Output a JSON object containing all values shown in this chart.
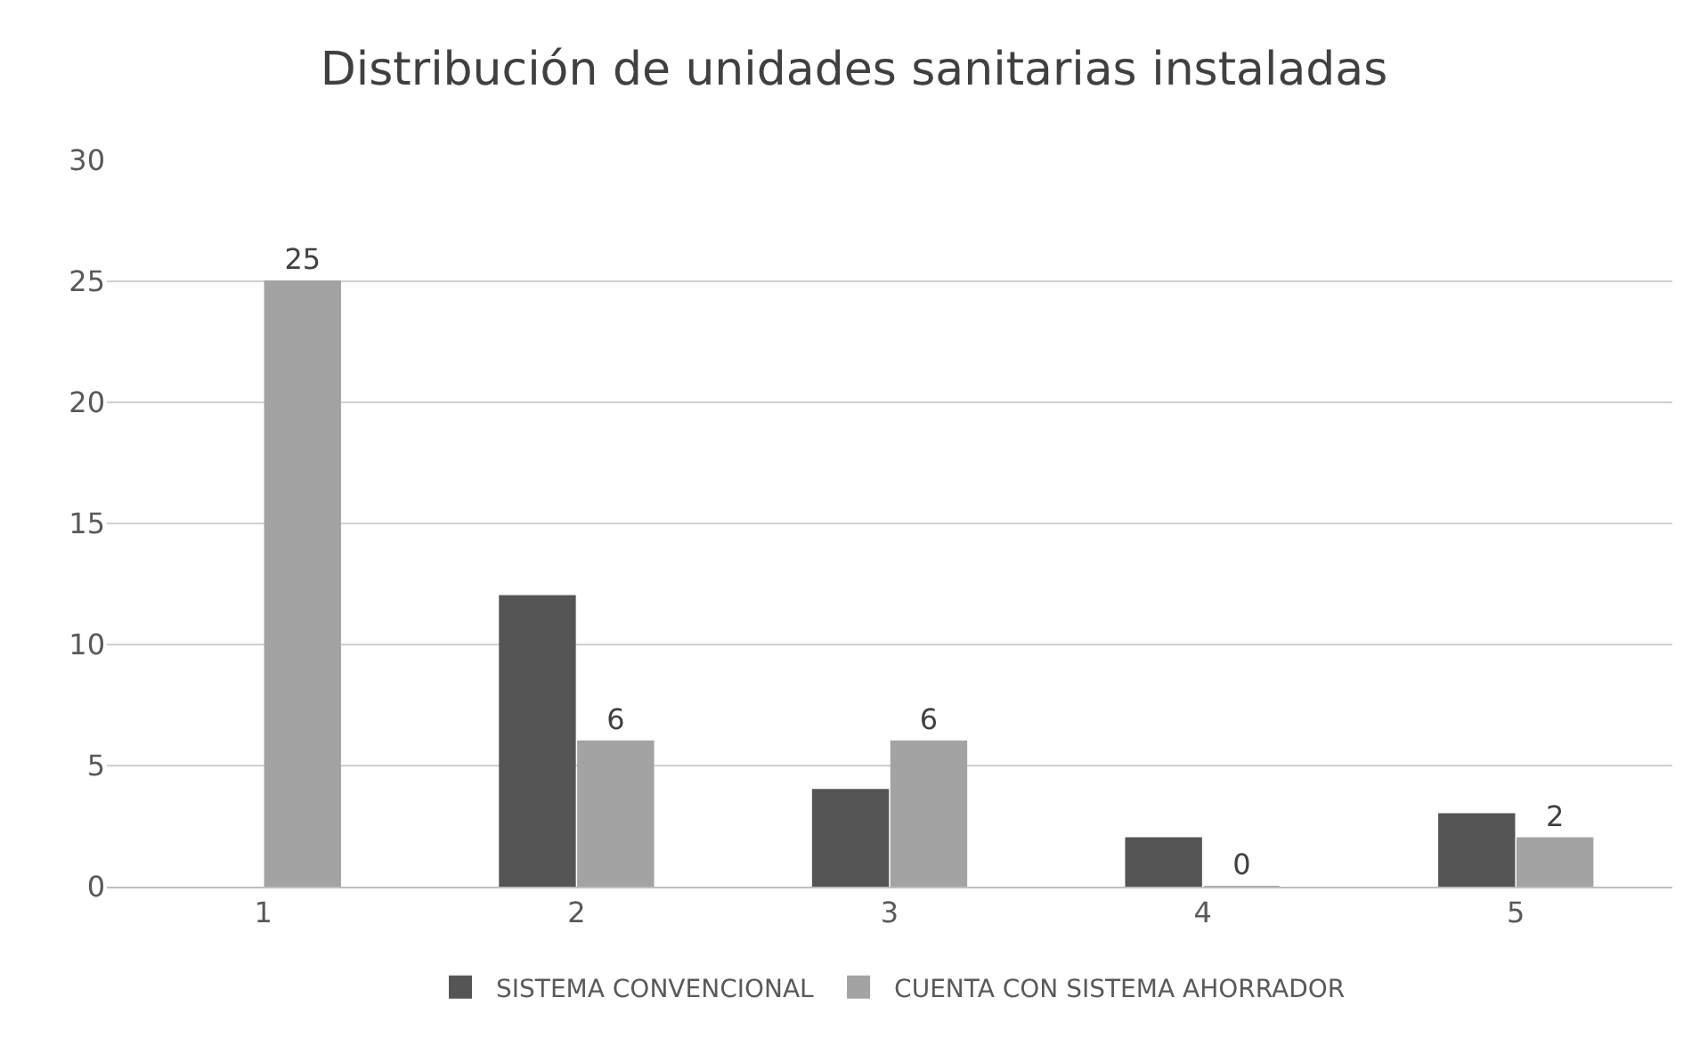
{
  "chart_data": {
    "type": "bar",
    "title": "Distribución de unidades sanitarias instaladas",
    "categories": [
      "1",
      "2",
      "3",
      "4",
      "5"
    ],
    "series": [
      {
        "name": "SISTEMA CONVENCIONAL",
        "color": "#555555",
        "values": [
          null,
          12,
          4,
          2,
          3
        ]
      },
      {
        "name": "CUENTA CON SISTEMA AHORRADOR",
        "color": "#a3a3a3",
        "values": [
          25,
          6,
          6,
          0,
          2
        ],
        "value_labels": [
          "25",
          "6",
          "6",
          "0",
          "2"
        ]
      }
    ],
    "ylim": [
      0,
      30
    ],
    "yticks": [
      0,
      5,
      10,
      15,
      20,
      25,
      30
    ],
    "grid": "y",
    "legend": "bottom"
  }
}
